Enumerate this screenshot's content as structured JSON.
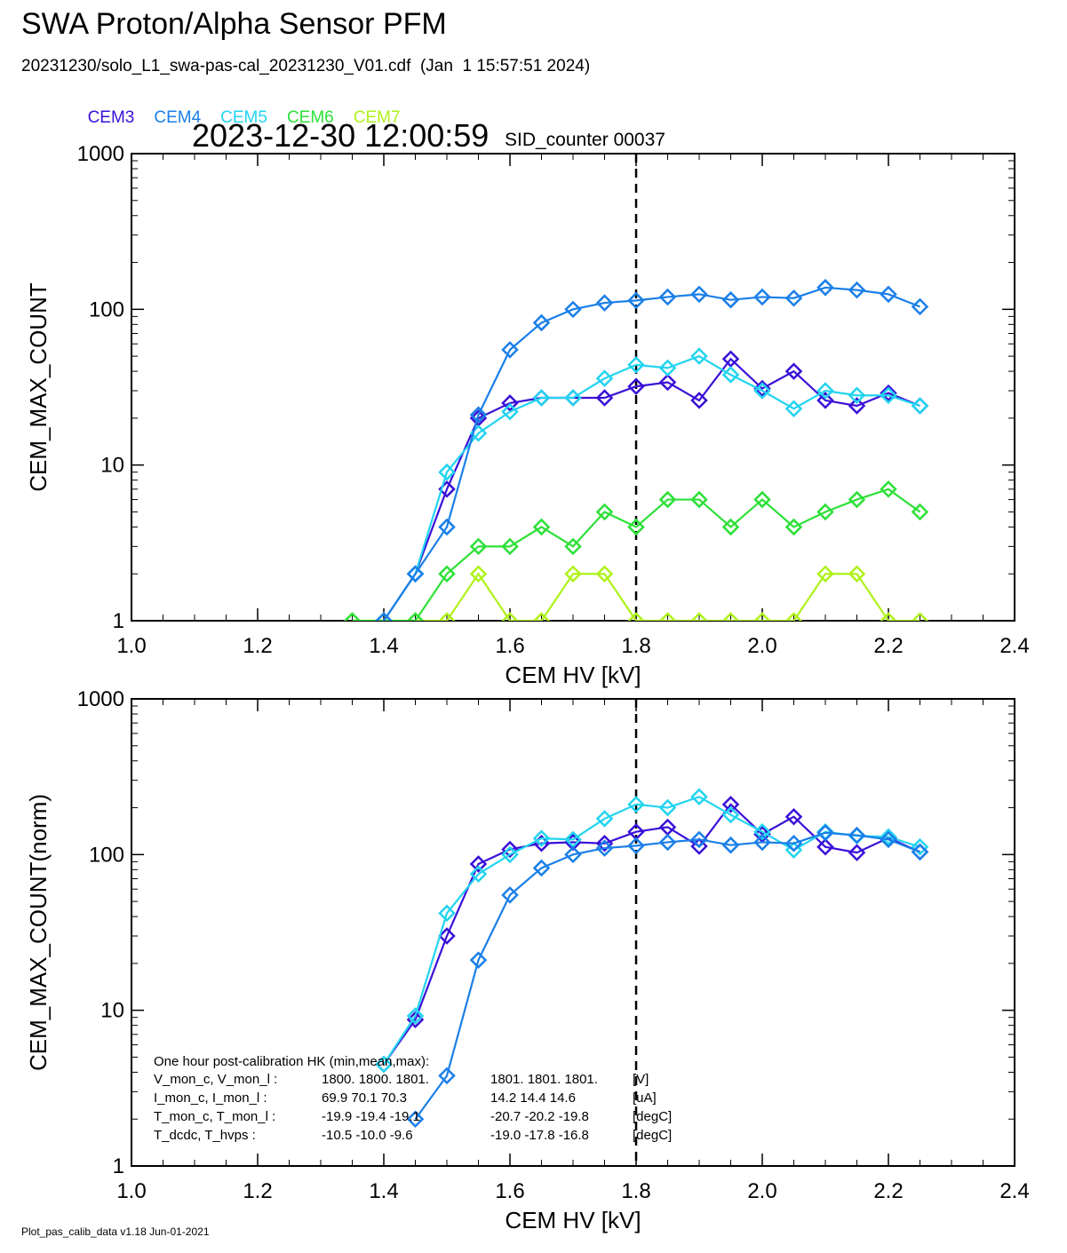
{
  "title": "SWA Proton/Alpha Sensor PFM",
  "file_line": "20231230/solo_L1_swa-pas-cal_20231230_V01.cdf  (Jan  1 15:57:51 2024)",
  "timestamp": "2023-12-30 12:00:59",
  "sid_label": "SID_counter 00037",
  "footer": "Plot_pas_calib_data v1.18 Jun-01-2021",
  "legend": [
    {
      "name": "CEM3",
      "color": "#3a10d8"
    },
    {
      "name": "CEM4",
      "color": "#1a7fe8"
    },
    {
      "name": "CEM5",
      "color": "#22d4f0"
    },
    {
      "name": "CEM6",
      "color": "#2ee038"
    },
    {
      "name": "CEM7",
      "color": "#aef21a"
    }
  ],
  "hk": {
    "header": "One hour post-calibration HK (min,mean,max):",
    "rows": [
      {
        "label": "V_mon_c, V_mon_l :",
        "c": "1800.  1800.  1801.",
        "l": "1801.  1801.  1801.",
        "unit": "[V]"
      },
      {
        "label": "I_mon_c,  I_mon_l :",
        "c": "69.9   70.1   70.3",
        "l": "14.2   14.4   14.6",
        "unit": "[uA]"
      },
      {
        "label": "T_mon_c, T_mon_l :",
        "c": "-19.9  -19.4  -19.1",
        "l": "-20.7  -20.2  -19.8",
        "unit": "[degC]"
      },
      {
        "label": "T_dcdc,    T_hvps :",
        "c": "-10.5  -10.0   -9.6",
        "l": "-19.0  -17.8  -16.8",
        "unit": "[degC]"
      }
    ]
  },
  "chart_data": [
    {
      "type": "line",
      "xlabel": "CEM HV [kV]",
      "ylabel": "CEM_MAX_COUNT",
      "xlim": [
        1.0,
        2.4
      ],
      "ylim": [
        1,
        1000
      ],
      "yscale": "log",
      "xticks": [
        "1.0",
        "1.2",
        "1.4",
        "1.6",
        "1.8",
        "2.0",
        "2.2",
        "2.4"
      ],
      "yticks": [
        "1",
        "10",
        "100",
        "1000"
      ],
      "vline": 1.8,
      "x": [
        1.35,
        1.4,
        1.45,
        1.5,
        1.55,
        1.6,
        1.65,
        1.7,
        1.75,
        1.8,
        1.85,
        1.9,
        1.95,
        2.0,
        2.05,
        2.1,
        2.15,
        2.2,
        2.25
      ],
      "series": [
        {
          "name": "CEM7",
          "color": "#aef21a",
          "values": [
            1,
            1,
            1,
            1,
            2,
            1,
            1,
            2,
            2,
            1,
            1,
            1,
            1,
            1,
            1,
            2,
            2,
            1,
            1
          ]
        },
        {
          "name": "CEM6",
          "color": "#2ee038",
          "values": [
            1,
            1,
            1,
            2,
            3,
            3,
            4,
            3,
            5,
            4,
            6,
            6,
            4,
            6,
            4,
            5,
            6,
            7,
            5
          ]
        },
        {
          "name": "CEM3",
          "color": "#3a10d8",
          "values": [
            null,
            1,
            2,
            7,
            20,
            25,
            27,
            27,
            27,
            32,
            34,
            26,
            48,
            31,
            40,
            26,
            24,
            29,
            24
          ]
        },
        {
          "name": "CEM5",
          "color": "#22d4f0",
          "values": [
            null,
            1,
            2,
            9,
            16,
            22,
            27,
            27,
            36,
            44,
            42,
            50,
            38,
            30,
            23,
            30,
            28,
            28,
            24
          ]
        },
        {
          "name": "CEM4",
          "color": "#1a7fe8",
          "values": [
            null,
            1,
            2,
            4,
            21,
            55,
            82,
            100,
            110,
            114,
            120,
            125,
            115,
            120,
            118,
            138,
            133,
            125,
            104
          ]
        }
      ]
    },
    {
      "type": "line",
      "xlabel": "CEM HV [kV]",
      "ylabel": "CEM_MAX_COUNT(norm)",
      "xlim": [
        1.0,
        2.4
      ],
      "ylim": [
        1,
        1000
      ],
      "yscale": "log",
      "xticks": [
        "1.0",
        "1.2",
        "1.4",
        "1.6",
        "1.8",
        "2.0",
        "2.2",
        "2.4"
      ],
      "yticks": [
        "1",
        "10",
        "100",
        "1000"
      ],
      "vline": 1.8,
      "x": [
        1.35,
        1.4,
        1.45,
        1.5,
        1.55,
        1.6,
        1.65,
        1.7,
        1.75,
        1.8,
        1.85,
        1.9,
        1.95,
        2.0,
        2.05,
        2.1,
        2.15,
        2.2,
        2.25
      ],
      "series": [
        {
          "name": "CEM3",
          "color": "#3a10d8",
          "values": [
            null,
            4.5,
            8.7,
            30,
            87,
            108,
            118,
            120,
            118,
            140,
            150,
            113,
            210,
            135,
            175,
            112,
            103,
            128,
            104
          ]
        },
        {
          "name": "CEM5",
          "color": "#22d4f0",
          "values": [
            null,
            4.5,
            9.2,
            42,
            75,
            100,
            127,
            125,
            170,
            210,
            200,
            235,
            180,
            140,
            107,
            140,
            132,
            130,
            112
          ]
        },
        {
          "name": "CEM4",
          "color": "#1a7fe8",
          "values": [
            null,
            null,
            2,
            3.8,
            21,
            55,
            82,
            100,
            110,
            114,
            120,
            125,
            115,
            120,
            118,
            138,
            133,
            125,
            104
          ]
        }
      ]
    }
  ]
}
